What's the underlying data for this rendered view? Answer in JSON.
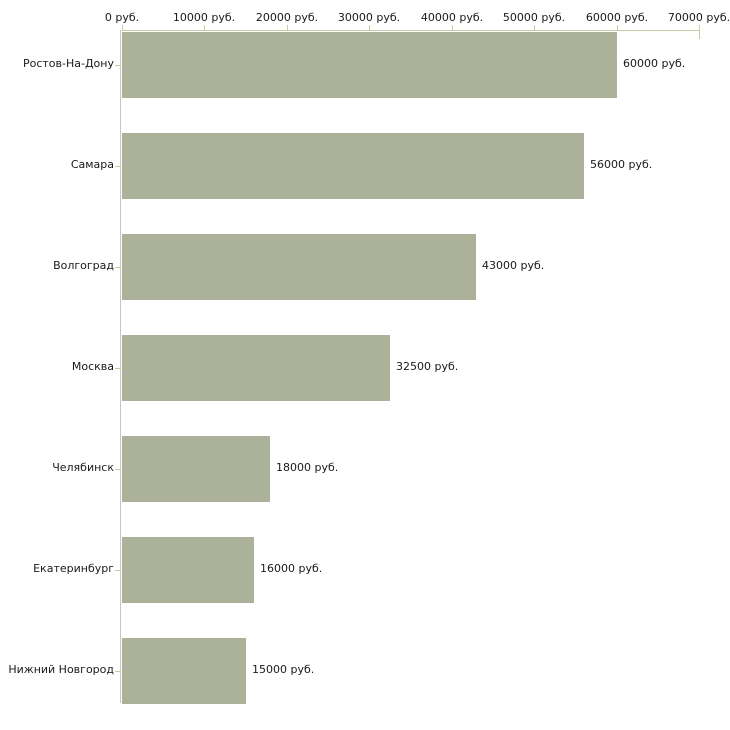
{
  "chart_data": {
    "type": "bar",
    "orientation": "horizontal",
    "categories": [
      "Ростов-На-Дону",
      "Самара",
      "Волгоград",
      "Москва",
      "Челябинск",
      "Екатеринбург",
      "Нижний Новгород"
    ],
    "values": [
      60000,
      56000,
      43000,
      32500,
      18000,
      16000,
      15000
    ],
    "value_labels": [
      "60000 руб.",
      "56000 руб.",
      "43000 руб.",
      "32500 руб.",
      "18000 руб.",
      "16000 руб.",
      "15000 руб."
    ],
    "unit": "руб.",
    "x_axis": {
      "position": "top",
      "xlim": [
        0,
        70000
      ],
      "tick_values": [
        0,
        10000,
        20000,
        30000,
        40000,
        50000,
        60000,
        70000
      ],
      "tick_labels": [
        "0 руб.",
        "10000 руб.",
        "20000 руб.",
        "30000 руб.",
        "40000 руб.",
        "50000 руб.",
        "60000 руб.",
        "70000 руб."
      ]
    },
    "grid": "off",
    "legend": "none"
  },
  "colors": {
    "bar_fill": "#ABB299",
    "axis_khaki": "#C9C9A3",
    "axis_gray": "#C6C6C6",
    "text": "#1A1A1A",
    "background": "#FFFFFF"
  }
}
